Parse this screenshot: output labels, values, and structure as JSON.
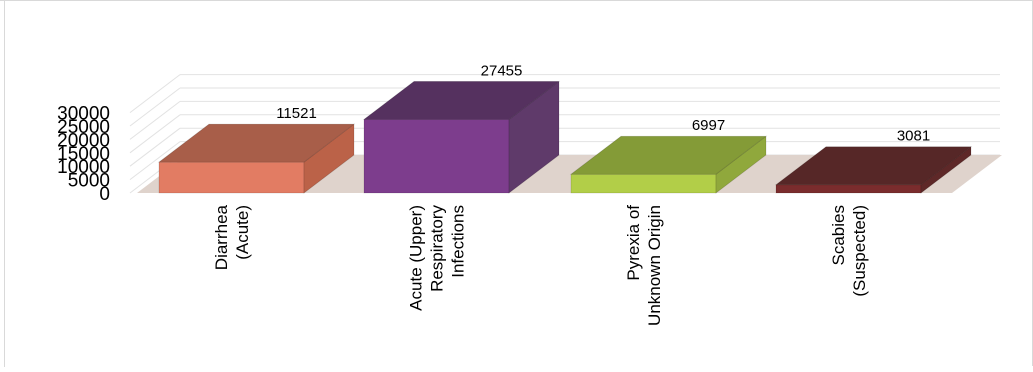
{
  "chart_data": {
    "type": "bar",
    "categories": [
      [
        "Diarrhea",
        "(Acute)"
      ],
      [
        "Acute (Upper)",
        "Respiratory",
        "Infections"
      ],
      [
        "Pyrexia of",
        "Unknown Origin"
      ],
      [
        "Scabies",
        "(Suspected)"
      ]
    ],
    "values": [
      11521,
      27455,
      6997,
      3081
    ],
    "data_labels": [
      "11521",
      "27455",
      "6997",
      "3081"
    ],
    "yticks": [
      "0",
      "5000",
      "10000",
      "15000",
      "20000",
      "25000",
      "30000"
    ],
    "ylim": [
      0,
      30000
    ],
    "title": "",
    "xlabel": "",
    "ylabel": "",
    "grid": true,
    "legend": "none",
    "style": "3d-bar",
    "colors": [
      {
        "front": "#e27c63",
        "top": "#a85e49",
        "side": "#bb6248"
      },
      {
        "front": "#7d3d8d",
        "top": "#55315f",
        "side": "#5f3a6a"
      },
      {
        "front": "#b2ce48",
        "top": "#849b37",
        "side": "#90a83c"
      },
      {
        "front": "#7a2c2d",
        "top": "#562727",
        "side": "#5e2828"
      }
    ],
    "floor_color": "#dfd3cc",
    "grid_color": "#e2e2e2"
  }
}
